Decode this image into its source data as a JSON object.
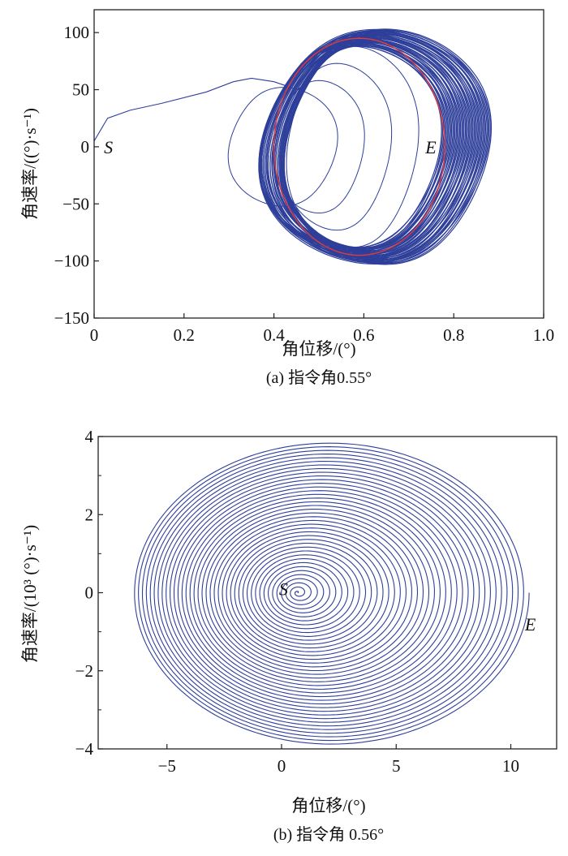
{
  "chart_data": [
    {
      "type": "line",
      "title": "(a) 指令角0.55°",
      "xlabel": "角位移/(°)",
      "ylabel": "角速率/((°)·s⁻¹)",
      "xlim": [
        0,
        1.0
      ],
      "ylim": [
        -150,
        120
      ],
      "xticks": [
        "0",
        "0.2",
        "0.4",
        "0.6",
        "0.8",
        "1.0"
      ],
      "xtick_values": [
        0,
        0.2,
        0.4,
        0.6,
        0.8,
        1.0
      ],
      "yticks": [
        "100",
        "50",
        "0",
        "−50",
        "−100",
        "−150"
      ],
      "ytick_values": [
        100,
        50,
        0,
        -50,
        -100,
        -150
      ],
      "grid": false,
      "annotations": [
        {
          "text": "S",
          "x": 0.04,
          "y": 0
        },
        {
          "text": "E",
          "x": 0.755,
          "y": 0
        }
      ],
      "series": [
        {
          "name": "phase-trajectory",
          "color": "#2e3f9a",
          "transient": {
            "x": [
              0,
              0.03,
              0.08,
              0.15,
              0.25,
              0.31,
              0.35,
              0.4,
              0.43
            ],
            "y": [
              5,
              25,
              32,
              38,
              48,
              57,
              60,
              57,
              53
            ]
          },
          "inner_loops": [
            {
              "x_min": 0.3,
              "x_max": 0.54,
              "y_amp": 52
            },
            {
              "x_min": 0.4,
              "x_max": 0.6,
              "y_amp": 58
            },
            {
              "x_min": 0.42,
              "x_max": 0.66,
              "y_amp": 73
            },
            {
              "x_min": 0.43,
              "x_max": 0.72,
              "y_amp": 88
            }
          ],
          "limit_band": {
            "x_min": [
              0.37,
              0.44
            ],
            "x_max": [
              0.77,
              0.88
            ],
            "y_amp": [
              88,
              103
            ],
            "cycles": 45
          }
        },
        {
          "name": "reference-ellipse",
          "color": "#e03a3a",
          "center_x": 0.59,
          "center_y": 0,
          "x_radius": 0.19,
          "y_radius": 95
        }
      ]
    },
    {
      "type": "line",
      "title": "(b) 指令角 0.56°",
      "xlabel": "角位移/(°)",
      "ylabel": "角速率/(10³ (°)·s⁻¹)",
      "xlim": [
        -8,
        12
      ],
      "ylim": [
        -4,
        4
      ],
      "xticks": [
        "−5",
        "0",
        "5",
        "10"
      ],
      "xtick_values": [
        -5,
        0,
        5,
        10
      ],
      "yticks": [
        "4",
        "2",
        "0",
        "−2",
        "−4"
      ],
      "ytick_values": [
        4,
        2,
        0,
        -2,
        -4
      ],
      "yminor_values": [
        3,
        1,
        -1,
        -3
      ],
      "grid": false,
      "annotations": [
        {
          "text": "S",
          "x": 0.1,
          "y": 0.1
        },
        {
          "text": "E",
          "x": 10.9,
          "y": -0.8
        }
      ],
      "series": [
        {
          "name": "divergent-spiral",
          "color": "#2e3f9a",
          "start_center_x": 0.7,
          "end_center_x": 2.15,
          "end_x_radius": 8.65,
          "end_y_radius": 3.9,
          "turns": 40
        }
      ]
    }
  ]
}
